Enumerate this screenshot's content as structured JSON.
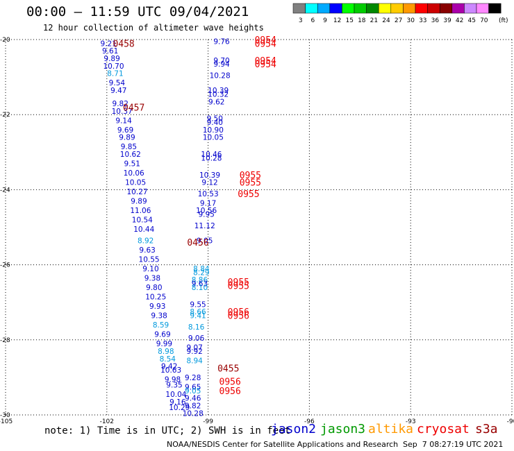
{
  "header": {
    "title": "00:00 – 11:59 UTC 09/04/2021",
    "subtitle": "12 hour collection of altimeter wave heights"
  },
  "footer": {
    "note": "note: 1) Time is in UTC; 2) SWH is in feet",
    "satellites": [
      {
        "name": "jason2",
        "color": "#0000cc"
      },
      {
        "name": "jason3",
        "color": "#009900"
      },
      {
        "name": "altika",
        "color": "#ff9900"
      },
      {
        "name": "cryosat",
        "color": "#ee0000"
      },
      {
        "name": "s3a",
        "color": "#990000"
      }
    ],
    "credit": "NOAA/NESDIS Center for Satellite Applications and Research",
    "generated": "Sep  7 08:27:19 UTC 2021"
  },
  "chart_data": {
    "type": "scatter",
    "xlim": [
      -105,
      -90
    ],
    "ylim": [
      -30,
      -20
    ],
    "xticks": [
      "-105",
      "-102",
      "-99",
      "-96",
      "-93",
      "-90"
    ],
    "yticks": [
      "-20",
      "-22",
      "-24",
      "-26",
      "-28",
      "-30"
    ],
    "grid": true,
    "legend_unit": "(ft)",
    "color_scale": [
      {
        "label": "3",
        "color": "#808080"
      },
      {
        "label": "6",
        "color": "#00ffff"
      },
      {
        "label": "9",
        "color": "#00aaff"
      },
      {
        "label": "12",
        "color": "#0000ff"
      },
      {
        "label": "15",
        "color": "#00ff00"
      },
      {
        "label": "18",
        "color": "#00cc00"
      },
      {
        "label": "21",
        "color": "#008800"
      },
      {
        "label": "24",
        "color": "#ffff00"
      },
      {
        "label": "27",
        "color": "#ffcc00"
      },
      {
        "label": "30",
        "color": "#ff9900"
      },
      {
        "label": "33",
        "color": "#ff0000"
      },
      {
        "label": "36",
        "color": "#cc0000"
      },
      {
        "label": "39",
        "color": "#880000"
      },
      {
        "label": "42",
        "color": "#aa00aa"
      },
      {
        "label": "45",
        "color": "#cc88ff"
      },
      {
        "label": "70",
        "color": "#ff88ff"
      },
      {
        "label": "",
        "color": "#000000"
      }
    ],
    "track_times": [
      {
        "text": "0458",
        "lon": -101.5,
        "lat": -20.1,
        "color": "#990000"
      },
      {
        "text": "0457",
        "lon": -101.2,
        "lat": -21.8,
        "color": "#990000"
      },
      {
        "text": "0456",
        "lon": -99.3,
        "lat": -25.4,
        "color": "#990000"
      },
      {
        "text": "0455",
        "lon": -98.4,
        "lat": -28.75,
        "color": "#990000"
      },
      {
        "text": "0954",
        "lon": -97.3,
        "lat": -20.0,
        "color": "#ee0000"
      },
      {
        "text": "0954",
        "lon": -97.3,
        "lat": -20.1,
        "color": "#ee0000"
      },
      {
        "text": "0954",
        "lon": -97.3,
        "lat": -20.55,
        "color": "#ee0000"
      },
      {
        "text": "0954",
        "lon": -97.3,
        "lat": -20.65,
        "color": "#ee0000"
      },
      {
        "text": "0955",
        "lon": -97.75,
        "lat": -23.6,
        "color": "#ee0000"
      },
      {
        "text": "0955",
        "lon": -97.75,
        "lat": -23.8,
        "color": "#ee0000"
      },
      {
        "text": "0955",
        "lon": -97.8,
        "lat": -24.1,
        "color": "#ee0000"
      },
      {
        "text": "0955",
        "lon": -98.1,
        "lat": -26.45,
        "color": "#ee0000"
      },
      {
        "text": "0955",
        "lon": -98.1,
        "lat": -26.55,
        "color": "#ee0000"
      },
      {
        "text": "0956",
        "lon": -98.1,
        "lat": -27.25,
        "color": "#ee0000"
      },
      {
        "text": "0956",
        "lon": -98.1,
        "lat": -27.35,
        "color": "#ee0000"
      },
      {
        "text": "0956",
        "lon": -98.35,
        "lat": -29.1,
        "color": "#ee0000"
      },
      {
        "text": "0956",
        "lon": -98.35,
        "lat": -29.35,
        "color": "#ee0000"
      }
    ],
    "points": [
      {
        "lon": -101.95,
        "lat": -20.1,
        "swh": "9.21",
        "color": "#0000cc"
      },
      {
        "lon": -101.9,
        "lat": -20.3,
        "swh": "9.61",
        "color": "#0000cc"
      },
      {
        "lon": -101.85,
        "lat": -20.5,
        "swh": "9.89",
        "color": "#0000cc"
      },
      {
        "lon": -101.8,
        "lat": -20.7,
        "swh": "10.70",
        "color": "#0000cc"
      },
      {
        "lon": -101.75,
        "lat": -20.9,
        "swh": "8.71",
        "color": "#0099dd"
      },
      {
        "lon": -101.7,
        "lat": -21.15,
        "swh": "9.54",
        "color": "#0000cc"
      },
      {
        "lon": -101.65,
        "lat": -21.35,
        "swh": "9.47",
        "color": "#0000cc"
      },
      {
        "lon": -101.6,
        "lat": -21.7,
        "swh": "9.82",
        "color": "#0000cc"
      },
      {
        "lon": -101.55,
        "lat": -21.9,
        "swh": "10.37",
        "color": "#0000cc"
      },
      {
        "lon": -101.5,
        "lat": -22.15,
        "swh": "9.14",
        "color": "#0000cc"
      },
      {
        "lon": -101.45,
        "lat": -22.4,
        "swh": "9.69",
        "color": "#0000cc"
      },
      {
        "lon": -101.4,
        "lat": -22.6,
        "swh": "9.89",
        "color": "#0000cc"
      },
      {
        "lon": -101.35,
        "lat": -22.85,
        "swh": "9.85",
        "color": "#0000cc"
      },
      {
        "lon": -101.3,
        "lat": -23.05,
        "swh": "10.62",
        "color": "#0000cc"
      },
      {
        "lon": -101.25,
        "lat": -23.3,
        "swh": "9.51",
        "color": "#0000cc"
      },
      {
        "lon": -101.2,
        "lat": -23.55,
        "swh": "10.06",
        "color": "#0000cc"
      },
      {
        "lon": -101.15,
        "lat": -23.8,
        "swh": "10.05",
        "color": "#0000cc"
      },
      {
        "lon": -101.1,
        "lat": -24.05,
        "swh": "10.27",
        "color": "#0000cc"
      },
      {
        "lon": -101.05,
        "lat": -24.3,
        "swh": "9.89",
        "color": "#0000cc"
      },
      {
        "lon": -101.0,
        "lat": -24.55,
        "swh": "11.06",
        "color": "#0000cc"
      },
      {
        "lon": -100.95,
        "lat": -24.8,
        "swh": "10.54",
        "color": "#0000cc"
      },
      {
        "lon": -100.9,
        "lat": -25.05,
        "swh": "10.44",
        "color": "#0000cc"
      },
      {
        "lon": -100.85,
        "lat": -25.35,
        "swh": "8.92",
        "color": "#0099dd"
      },
      {
        "lon": -100.8,
        "lat": -25.6,
        "swh": "9.63",
        "color": "#0000cc"
      },
      {
        "lon": -100.75,
        "lat": -25.85,
        "swh": "10.55",
        "color": "#0000cc"
      },
      {
        "lon": -100.7,
        "lat": -26.1,
        "swh": "9.10",
        "color": "#0000cc"
      },
      {
        "lon": -100.65,
        "lat": -26.35,
        "swh": "9.38",
        "color": "#0000cc"
      },
      {
        "lon": -100.6,
        "lat": -26.6,
        "swh": "9.80",
        "color": "#0000cc"
      },
      {
        "lon": -100.55,
        "lat": -26.85,
        "swh": "10.25",
        "color": "#0000cc"
      },
      {
        "lon": -100.5,
        "lat": -27.1,
        "swh": "9.93",
        "color": "#0000cc"
      },
      {
        "lon": -100.45,
        "lat": -27.35,
        "swh": "9.38",
        "color": "#0000cc"
      },
      {
        "lon": -100.4,
        "lat": -27.6,
        "swh": "8.59",
        "color": "#0099dd"
      },
      {
        "lon": -100.35,
        "lat": -27.85,
        "swh": "9.69",
        "color": "#0000cc"
      },
      {
        "lon": -100.3,
        "lat": -28.1,
        "swh": "9.99",
        "color": "#0000cc"
      },
      {
        "lon": -100.25,
        "lat": -28.3,
        "swh": "8.98",
        "color": "#0099dd"
      },
      {
        "lon": -100.2,
        "lat": -28.5,
        "swh": "8.54",
        "color": "#0099dd"
      },
      {
        "lon": -100.15,
        "lat": -28.7,
        "swh": "9.42",
        "color": "#0000cc"
      },
      {
        "lon": -100.1,
        "lat": -28.8,
        "swh": "10.63",
        "color": "#0000cc"
      },
      {
        "lon": -100.05,
        "lat": -29.05,
        "swh": "9.98",
        "color": "#0000cc"
      },
      {
        "lon": -100.0,
        "lat": -29.2,
        "swh": "9.35",
        "color": "#0000cc"
      },
      {
        "lon": -99.95,
        "lat": -29.45,
        "swh": "10.04",
        "color": "#0000cc"
      },
      {
        "lon": -99.9,
        "lat": -29.65,
        "swh": "9.16",
        "color": "#0000cc"
      },
      {
        "lon": -99.85,
        "lat": -29.8,
        "swh": "10.29",
        "color": "#0000cc"
      },
      {
        "lon": -98.6,
        "lat": -20.05,
        "swh": "9.76",
        "color": "#0000cc"
      },
      {
        "lon": -98.6,
        "lat": -20.55,
        "swh": "9.70",
        "color": "#0000cc"
      },
      {
        "lon": -98.6,
        "lat": -20.65,
        "swh": "9.94",
        "color": "#0000cc"
      },
      {
        "lon": -98.65,
        "lat": -20.95,
        "swh": "10.28",
        "color": "#0000cc"
      },
      {
        "lon": -98.7,
        "lat": -21.35,
        "swh": "10.39",
        "color": "#0000cc"
      },
      {
        "lon": -98.7,
        "lat": -21.45,
        "swh": "10.32",
        "color": "#0000cc"
      },
      {
        "lon": -98.75,
        "lat": -21.65,
        "swh": "9.62",
        "color": "#0000cc"
      },
      {
        "lon": -98.8,
        "lat": -22.1,
        "swh": "9.50",
        "color": "#0000cc"
      },
      {
        "lon": -98.8,
        "lat": -22.2,
        "swh": "9.40",
        "color": "#0000cc"
      },
      {
        "lon": -98.85,
        "lat": -22.4,
        "swh": "10.90",
        "color": "#0000cc"
      },
      {
        "lon": -98.85,
        "lat": -22.6,
        "swh": "10.05",
        "color": "#0000cc"
      },
      {
        "lon": -98.9,
        "lat": -23.05,
        "swh": "10.46",
        "color": "#0000cc"
      },
      {
        "lon": -98.9,
        "lat": -23.15,
        "swh": "10.28",
        "color": "#0000cc"
      },
      {
        "lon": -98.95,
        "lat": -23.6,
        "swh": "10.39",
        "color": "#0000cc"
      },
      {
        "lon": -98.95,
        "lat": -23.8,
        "swh": "9.12",
        "color": "#0000cc"
      },
      {
        "lon": -99.0,
        "lat": -24.1,
        "swh": "10.53",
        "color": "#0000cc"
      },
      {
        "lon": -99.0,
        "lat": -24.35,
        "swh": "9.17",
        "color": "#0000cc"
      },
      {
        "lon": -99.05,
        "lat": -24.55,
        "swh": "10.56",
        "color": "#0000cc"
      },
      {
        "lon": -99.05,
        "lat": -24.65,
        "swh": "9.95",
        "color": "#0000cc"
      },
      {
        "lon": -99.1,
        "lat": -24.95,
        "swh": "11.12",
        "color": "#0000cc"
      },
      {
        "lon": -99.1,
        "lat": -25.35,
        "swh": "9.05",
        "color": "#0000cc"
      },
      {
        "lon": -99.2,
        "lat": -26.1,
        "swh": "8.84",
        "color": "#0099dd"
      },
      {
        "lon": -99.2,
        "lat": -26.2,
        "swh": "8.29",
        "color": "#0099dd"
      },
      {
        "lon": -99.25,
        "lat": -26.4,
        "swh": "8.86",
        "color": "#0099dd"
      },
      {
        "lon": -99.25,
        "lat": -26.5,
        "swh": "9.63",
        "color": "#0000cc"
      },
      {
        "lon": -99.25,
        "lat": -26.6,
        "swh": "8.10",
        "color": "#0099dd"
      },
      {
        "lon": -99.3,
        "lat": -27.05,
        "swh": "9.55",
        "color": "#0000cc"
      },
      {
        "lon": -99.3,
        "lat": -27.25,
        "swh": "8.66",
        "color": "#0099dd"
      },
      {
        "lon": -99.3,
        "lat": -27.35,
        "swh": "9.41",
        "color": "#0099dd"
      },
      {
        "lon": -99.35,
        "lat": -27.65,
        "swh": "8.16",
        "color": "#0099dd"
      },
      {
        "lon": -99.35,
        "lat": -27.95,
        "swh": "9.06",
        "color": "#0000cc"
      },
      {
        "lon": -99.4,
        "lat": -28.2,
        "swh": "9.07",
        "color": "#0000cc"
      },
      {
        "lon": -99.4,
        "lat": -28.3,
        "swh": "9.92",
        "color": "#0000cc"
      },
      {
        "lon": -99.4,
        "lat": -28.55,
        "swh": "8.94",
        "color": "#0099dd"
      },
      {
        "lon": -99.45,
        "lat": -29.0,
        "swh": "9.28",
        "color": "#0000cc"
      },
      {
        "lon": -99.45,
        "lat": -29.25,
        "swh": "9.65",
        "color": "#0000cc"
      },
      {
        "lon": -99.45,
        "lat": -29.35,
        "swh": "9.05",
        "color": "#0099dd"
      },
      {
        "lon": -99.45,
        "lat": -29.55,
        "swh": "9.46",
        "color": "#0000cc"
      },
      {
        "lon": -99.45,
        "lat": -29.75,
        "swh": "9.82",
        "color": "#0000cc"
      },
      {
        "lon": -99.45,
        "lat": -29.95,
        "swh": "10.28",
        "color": "#0000cc"
      }
    ]
  }
}
